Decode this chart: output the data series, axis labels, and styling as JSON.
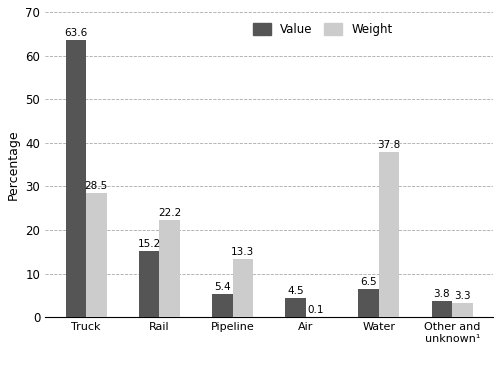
{
  "categories": [
    "Truck",
    "Rail",
    "Pipeline",
    "Air",
    "Water",
    "Other and\nunknown¹"
  ],
  "value_data": [
    63.6,
    15.2,
    5.4,
    4.5,
    6.5,
    3.8
  ],
  "weight_data": [
    28.5,
    22.2,
    13.3,
    0.1,
    37.8,
    3.3
  ],
  "value_labels": [
    "63.6",
    "15.2",
    "5.4",
    "4.5",
    "6.5",
    "3.8"
  ],
  "weight_labels": [
    "28.5",
    "22.2",
    "13.3",
    "0.1",
    "37.8",
    "3.3"
  ],
  "value_color": "#555555",
  "weight_color": "#cccccc",
  "ylabel": "Percentage",
  "ylim": [
    0,
    70
  ],
  "yticks": [
    0,
    10,
    20,
    30,
    40,
    50,
    60,
    70
  ],
  "legend_value": "Value",
  "legend_weight": "Weight",
  "bar_width": 0.28,
  "background_color": "#ffffff",
  "grid_color": "#aaaaaa"
}
